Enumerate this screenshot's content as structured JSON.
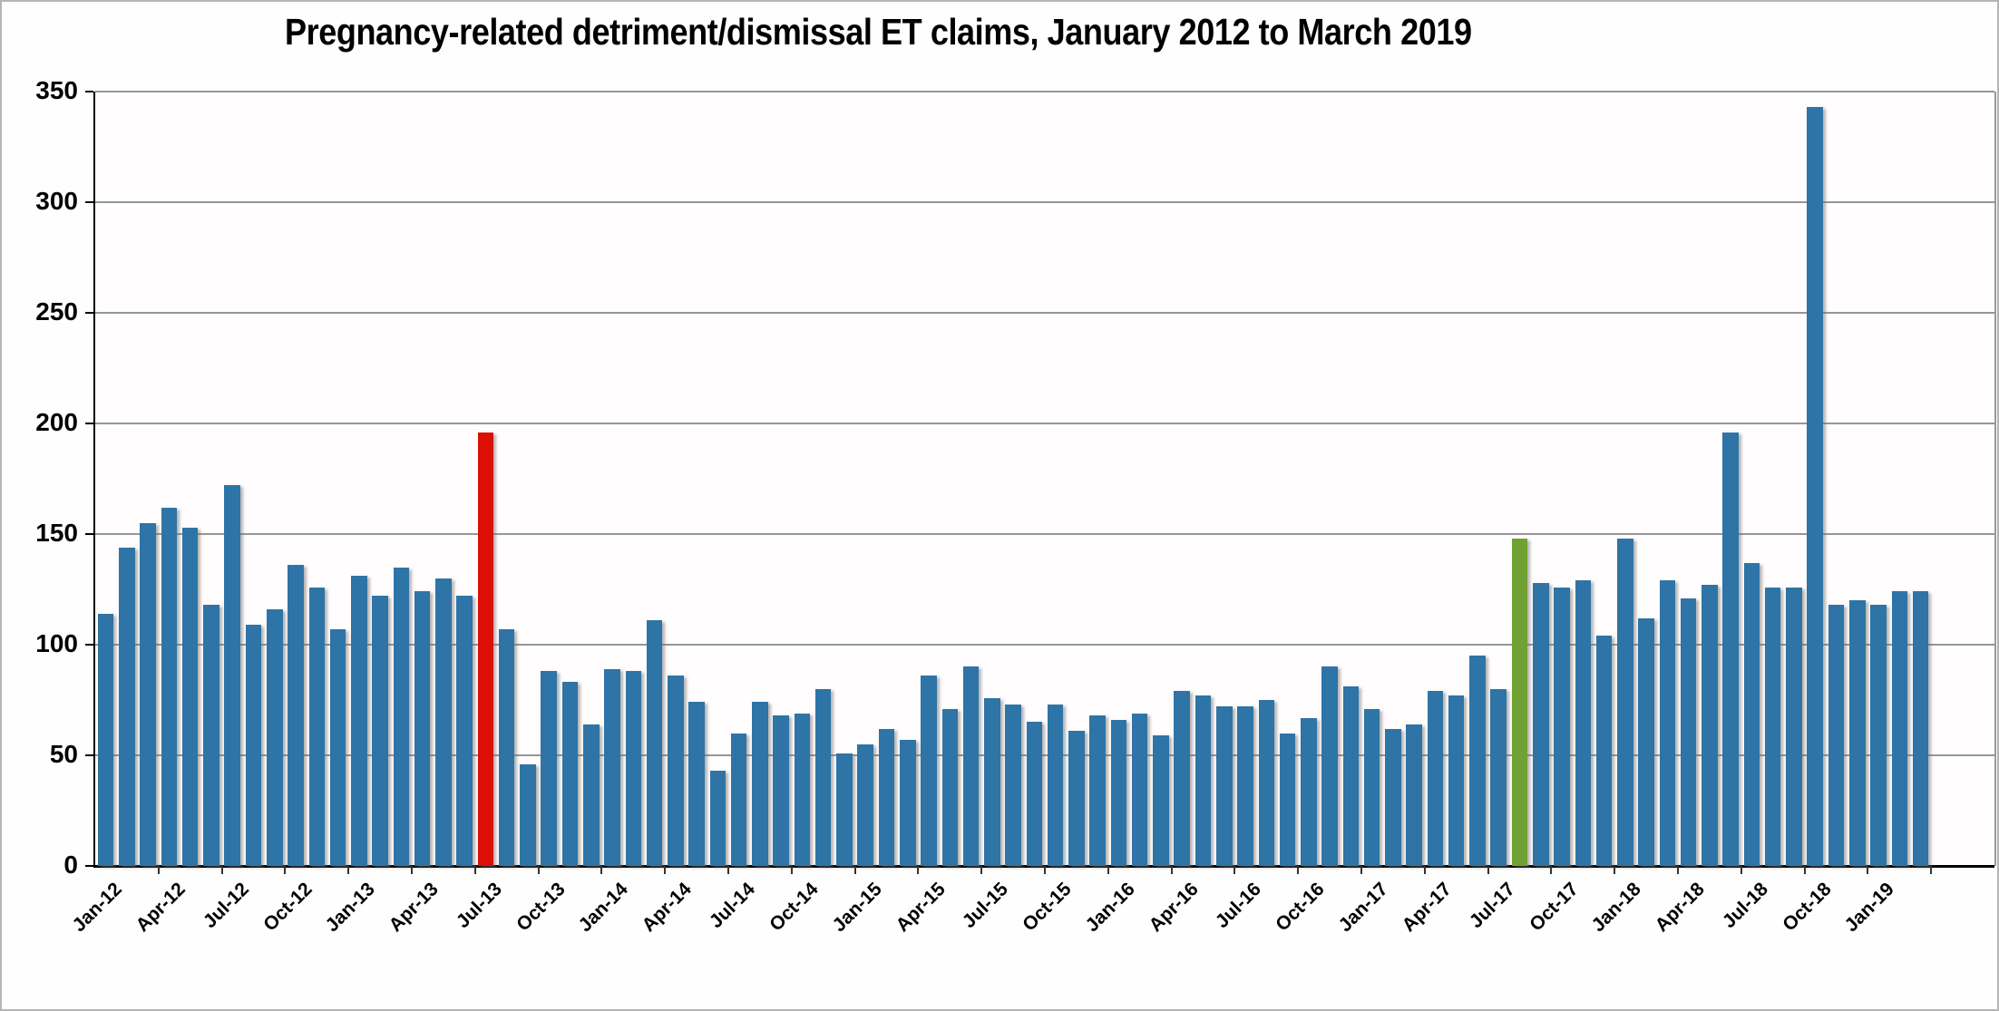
{
  "chart": {
    "title": "Pregnancy-related detriment/dismissal ET claims, January 2012 to March 2019"
  },
  "chart_data": {
    "type": "bar",
    "title": "Pregnancy-related detriment/dismissal ET claims, January 2012 to March 2019",
    "xlabel": "",
    "ylabel": "",
    "ylim": [
      0,
      350
    ],
    "y_ticks": [
      0,
      50,
      100,
      150,
      200,
      250,
      300,
      350
    ],
    "grid": true,
    "legend": false,
    "categories": [
      "Jan-12",
      "Feb-12",
      "Mar-12",
      "Apr-12",
      "May-12",
      "Jun-12",
      "Jul-12",
      "Aug-12",
      "Sep-12",
      "Oct-12",
      "Nov-12",
      "Dec-12",
      "Jan-13",
      "Feb-13",
      "Mar-13",
      "Apr-13",
      "May-13",
      "Jun-13",
      "Jul-13",
      "Aug-13",
      "Sep-13",
      "Oct-13",
      "Nov-13",
      "Dec-13",
      "Jan-14",
      "Feb-14",
      "Mar-14",
      "Apr-14",
      "May-14",
      "Jun-14",
      "Jul-14",
      "Aug-14",
      "Sep-14",
      "Oct-14",
      "Nov-14",
      "Dec-14",
      "Jan-15",
      "Feb-15",
      "Mar-15",
      "Apr-15",
      "May-15",
      "Jun-15",
      "Jul-15",
      "Aug-15",
      "Sep-15",
      "Oct-15",
      "Nov-15",
      "Dec-15",
      "Jan-16",
      "Feb-16",
      "Mar-16",
      "Apr-16",
      "May-16",
      "Jun-16",
      "Jul-16",
      "Aug-16",
      "Sep-16",
      "Oct-16",
      "Nov-16",
      "Dec-16",
      "Jan-17",
      "Feb-17",
      "Mar-17",
      "Apr-17",
      "May-17",
      "Jun-17",
      "Jul-17",
      "Aug-17",
      "Sep-17",
      "Oct-17",
      "Nov-17",
      "Dec-17",
      "Jan-18",
      "Feb-18",
      "Mar-18",
      "Apr-18",
      "May-18",
      "Jun-18",
      "Jul-18",
      "Aug-18",
      "Sep-18",
      "Oct-18",
      "Nov-18",
      "Dec-18",
      "Jan-19",
      "Feb-19",
      "Mar-19"
    ],
    "values": [
      114,
      144,
      155,
      162,
      153,
      118,
      172,
      109,
      116,
      136,
      126,
      107,
      131,
      122,
      135,
      124,
      130,
      122,
      196,
      107,
      46,
      88,
      83,
      64,
      89,
      88,
      111,
      86,
      74,
      43,
      60,
      74,
      68,
      69,
      80,
      51,
      55,
      62,
      57,
      86,
      71,
      90,
      76,
      73,
      65,
      73,
      61,
      68,
      66,
      69,
      59,
      79,
      77,
      72,
      72,
      75,
      60,
      67,
      90,
      81,
      71,
      62,
      64,
      79,
      77,
      95,
      80,
      148,
      128,
      126,
      129,
      104,
      148,
      112,
      129,
      121,
      127,
      196,
      137,
      126,
      126,
      343,
      118,
      120,
      118,
      124,
      124
    ],
    "highlighted_bars": {
      "18": "red",
      "67": "green"
    },
    "x_tick_labels": [
      "Jan-12",
      "Apr-12",
      "Jul-12",
      "Oct-12",
      "Jan-13",
      "Apr-13",
      "Jul-13",
      "Oct-13",
      "Jan-14",
      "Apr-14",
      "Jul-14",
      "Oct-14",
      "Jan-15",
      "Apr-15",
      "Jul-15",
      "Oct-15",
      "Jan-16",
      "Apr-16",
      "Jul-16",
      "Oct-16",
      "Jan-17",
      "Apr-17",
      "Jul-17",
      "Oct-17",
      "Jan-18",
      "Apr-18",
      "Jul-18",
      "Oct-18",
      "Jan-19"
    ],
    "colors": {
      "default": "#2E74A6",
      "red": "#DC0F04",
      "green": "#70A133",
      "gridline": "#969696",
      "axis": "#000000"
    }
  }
}
